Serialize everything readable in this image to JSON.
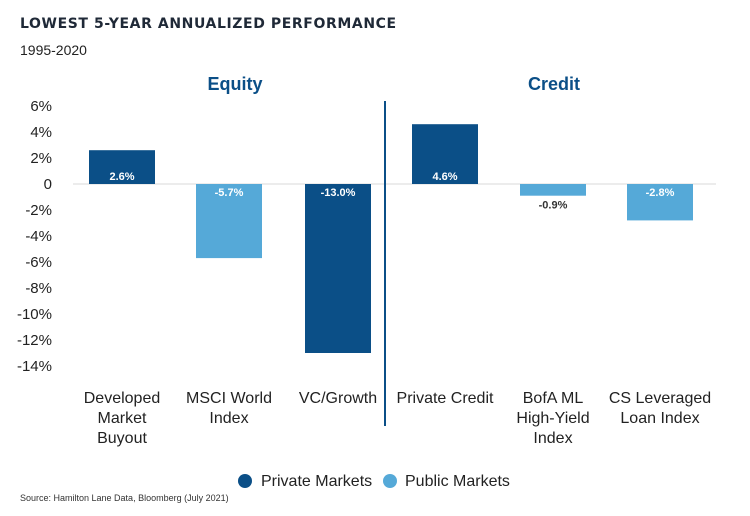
{
  "title": "LOWEST 5-YEAR ANNUALIZED PERFORMANCE",
  "subtitle": "1995-2020",
  "source": "Source: Hamilton Lane Data, Bloomberg (July 2021)",
  "colors": {
    "private": "#0b4f87",
    "public": "#55a9d8",
    "section_header": "#0b4f87",
    "divider": "#0b4f87",
    "gridline": "#d9d9d9"
  },
  "chart_data": {
    "type": "bar",
    "title": "LOWEST 5-YEAR ANNUALIZED PERFORMANCE",
    "subtitle": "1995-2020",
    "ylim": [
      -14,
      6
    ],
    "yticks": [
      6,
      4,
      2,
      0,
      -2,
      -4,
      -6,
      -8,
      -10,
      -12,
      -14
    ],
    "ytick_labels": [
      "6%",
      "4%",
      "2%",
      "0",
      "-2%",
      "-4%",
      "-6%",
      "-8%",
      "-10%",
      "-12%",
      "-14%"
    ],
    "groups": [
      {
        "name": "Equity",
        "categories": [
          "Developed Market Buyout",
          "MSCI World Index",
          "VC/Growth"
        ]
      },
      {
        "name": "Credit",
        "categories": [
          "Private Credit",
          "BofA ML High-Yield Index",
          "CS Leveraged Loan Index"
        ]
      }
    ],
    "categories": [
      "Developed Market Buyout",
      "MSCI World Index",
      "VC/Growth",
      "Private Credit",
      "BofA ML High-Yield Index",
      "CS Leveraged Loan Index"
    ],
    "category_label_lines": [
      [
        "Developed",
        "Market",
        "Buyout"
      ],
      [
        "MSCI World",
        "Index"
      ],
      [
        "VC/Growth"
      ],
      [
        "Private Credit"
      ],
      [
        "BofA ML",
        "High-Yield",
        "Index"
      ],
      [
        "CS Leveraged",
        "Loan Index"
      ]
    ],
    "values": [
      2.6,
      -5.7,
      -13.0,
      4.6,
      -0.9,
      -2.8
    ],
    "labels": [
      "2.6%",
      "-5.7%",
      "-13.0%",
      "4.6%",
      "-0.9%",
      "-2.8%"
    ],
    "market_type": [
      "private",
      "public",
      "private",
      "private",
      "public",
      "public"
    ],
    "series": [
      {
        "name": "Private Markets",
        "key": "private"
      },
      {
        "name": "Public Markets",
        "key": "public"
      }
    ],
    "legend_position": "bottom-center",
    "grid": false
  }
}
